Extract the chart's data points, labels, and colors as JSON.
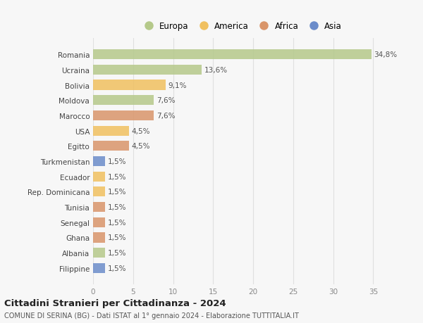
{
  "categories": [
    "Filippine",
    "Albania",
    "Ghana",
    "Senegal",
    "Tunisia",
    "Rep. Dominicana",
    "Ecuador",
    "Turkmenistan",
    "Egitto",
    "USA",
    "Marocco",
    "Moldova",
    "Bolivia",
    "Ucraina",
    "Romania"
  ],
  "values": [
    1.5,
    1.5,
    1.5,
    1.5,
    1.5,
    1.5,
    1.5,
    1.5,
    4.5,
    4.5,
    7.6,
    7.6,
    9.1,
    13.6,
    34.8
  ],
  "colors": [
    "#6b8cca",
    "#b5c98a",
    "#d9956a",
    "#d9956a",
    "#d9956a",
    "#f0c060",
    "#f0c060",
    "#6b8cca",
    "#d9956a",
    "#f0c060",
    "#d9956a",
    "#b5c98a",
    "#f0c060",
    "#b5c98a",
    "#b5c98a"
  ],
  "labels": [
    "1,5%",
    "1,5%",
    "1,5%",
    "1,5%",
    "1,5%",
    "1,5%",
    "1,5%",
    "1,5%",
    "4,5%",
    "4,5%",
    "7,6%",
    "7,6%",
    "9,1%",
    "13,6%",
    "34,8%"
  ],
  "legend_labels": [
    "Europa",
    "America",
    "Africa",
    "Asia"
  ],
  "legend_colors": [
    "#b5c98a",
    "#f0c060",
    "#d9956a",
    "#6b8cca"
  ],
  "title": "Cittadini Stranieri per Cittadinanza - 2024",
  "subtitle": "COMUNE DI SERINA (BG) - Dati ISTAT al 1° gennaio 2024 - Elaborazione TUTTITALIA.IT",
  "xlim": [
    0,
    37
  ],
  "xticks": [
    0,
    5,
    10,
    15,
    20,
    25,
    30,
    35
  ],
  "bg_color": "#f7f7f7",
  "grid_color": "#e0e0e0"
}
